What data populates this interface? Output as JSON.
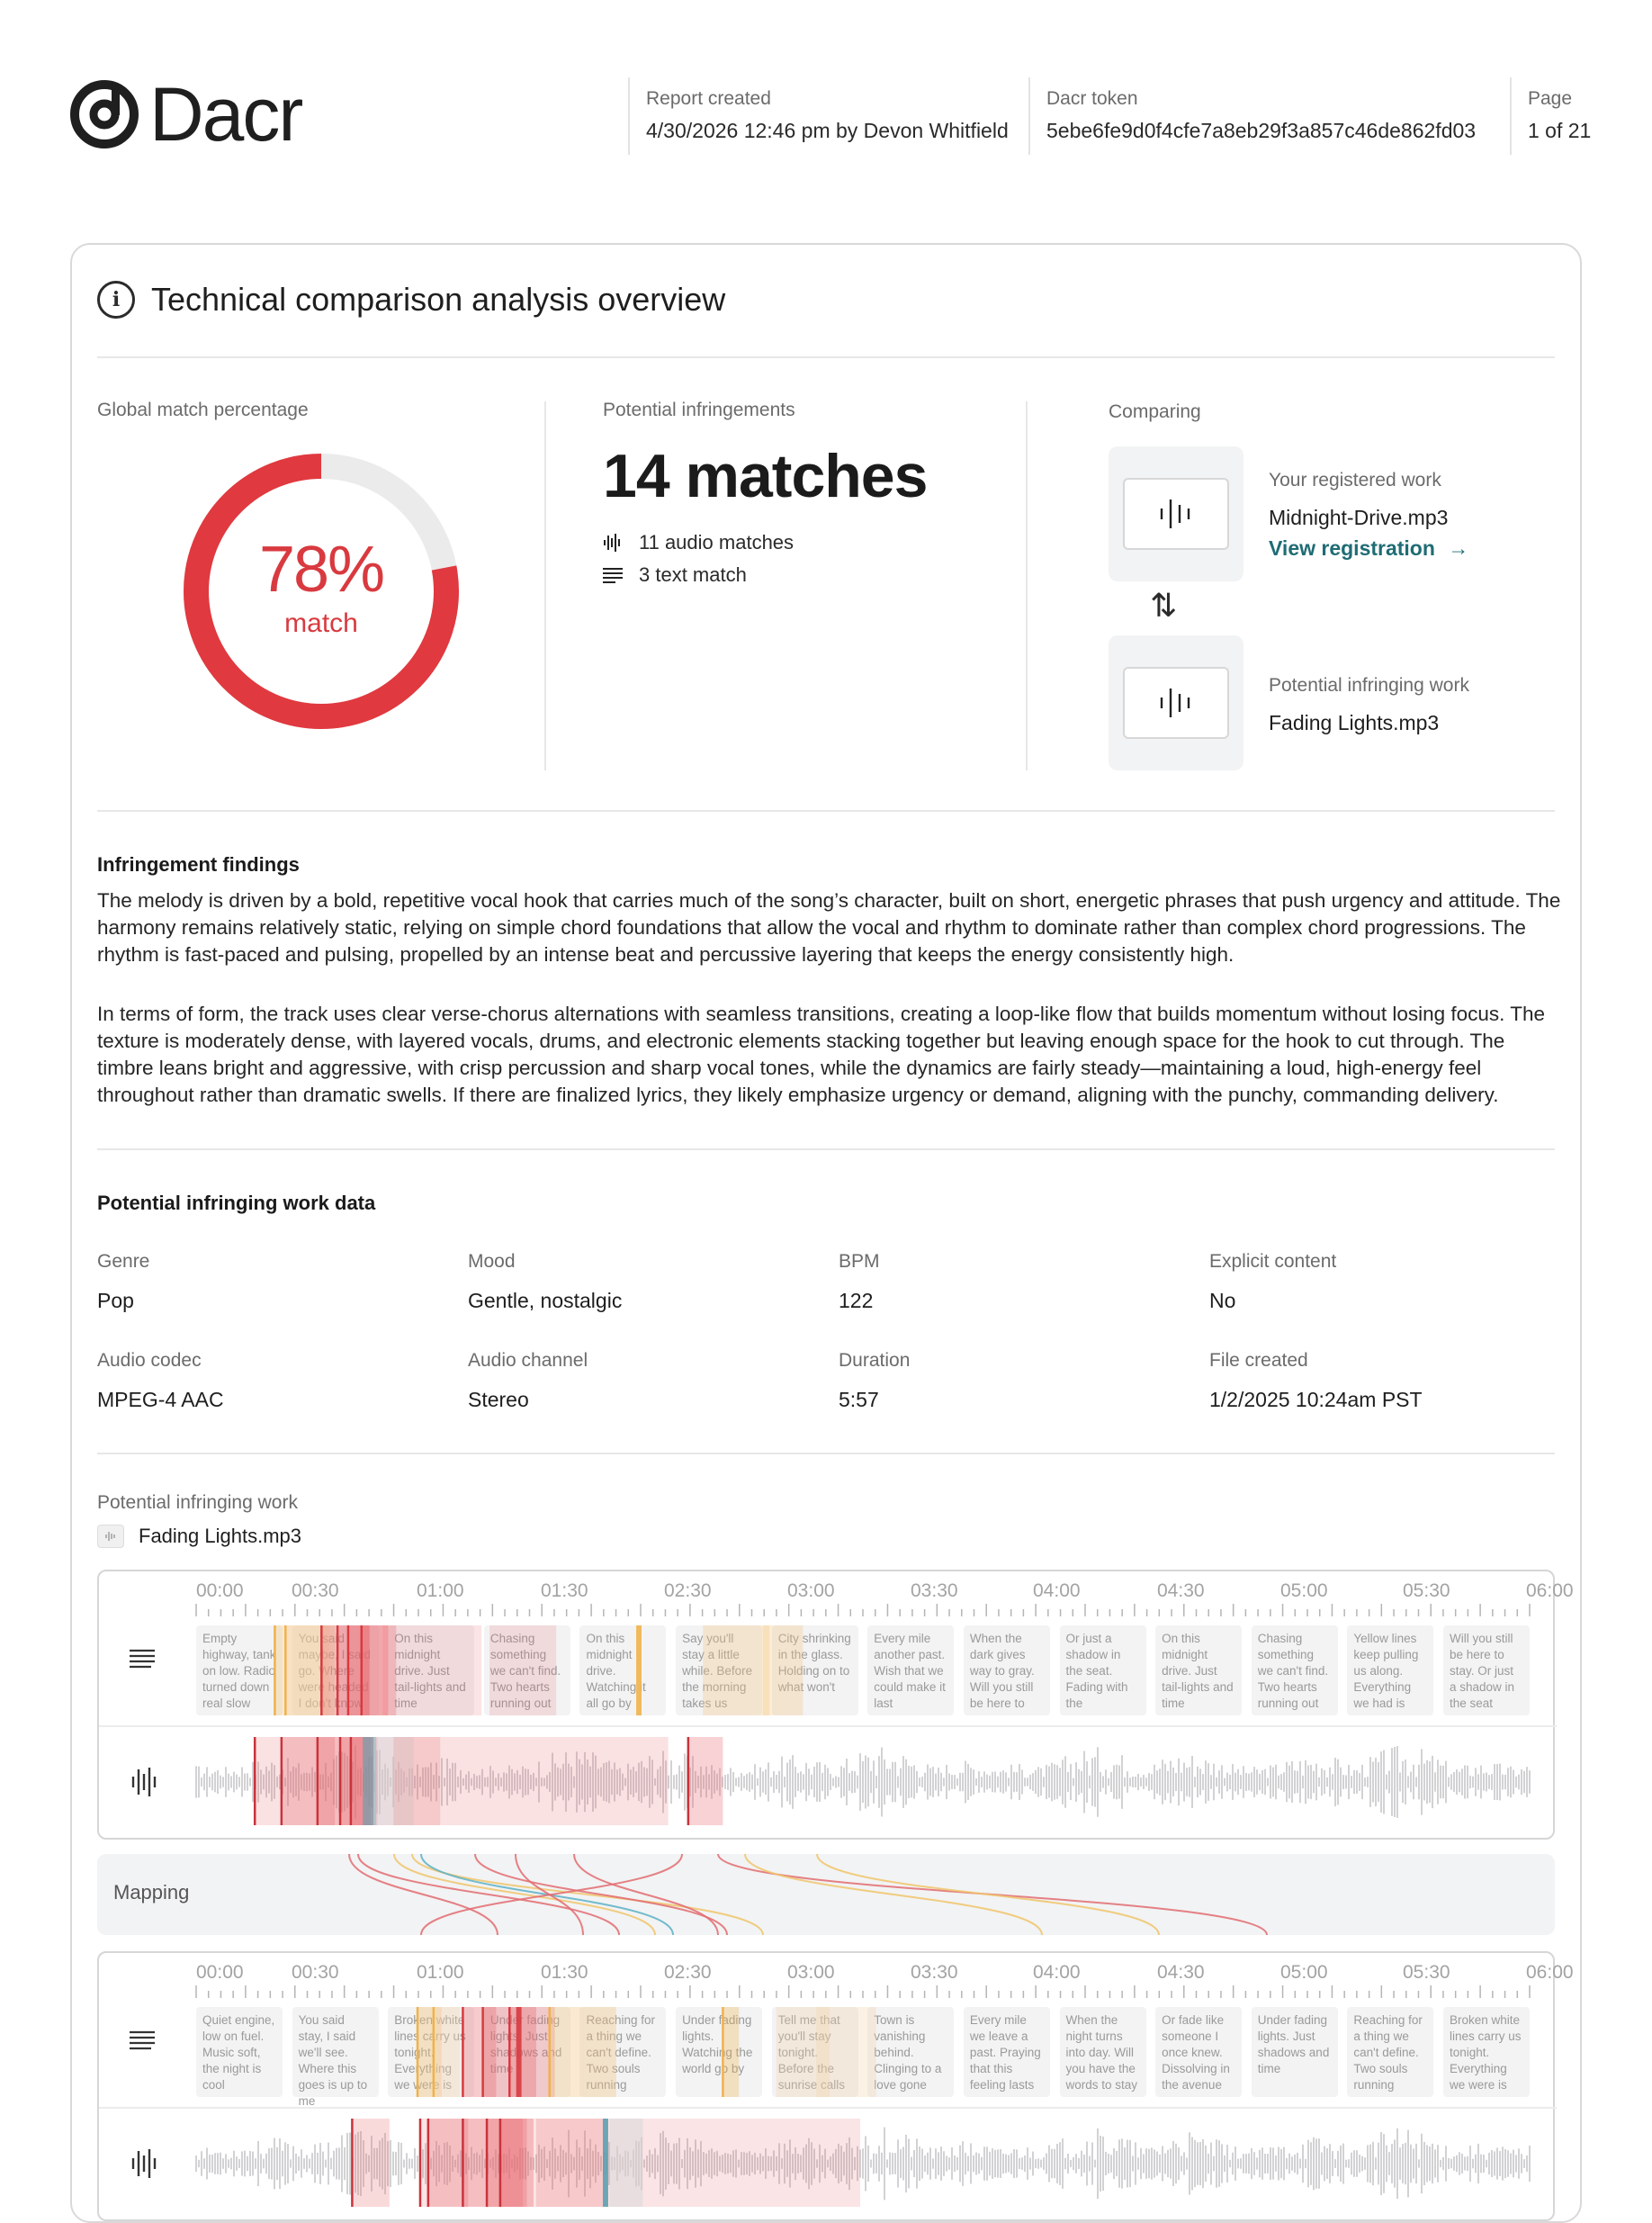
{
  "header": {
    "logo_text": "Dacr",
    "report_created_label": "Report created",
    "report_created_value": "4/30/2026 12:46 pm by Devon Whitfield",
    "token_label": "Dacr token",
    "token_value": "5ebe6fe9d0f4cfe7a8eb29f3a857c46de862fd03",
    "page_label": "Page",
    "page_value": "1 of 21"
  },
  "overview": {
    "title": "Technical comparison analysis overview",
    "global_match_label": "Global match percentage",
    "match_percent": 78,
    "match_percent_text": "78%",
    "match_word": "match",
    "infringements_label": "Potential infringements",
    "matches_count": "14 matches",
    "audio_matches": "11 audio matches",
    "text_matches": "3 text match",
    "comparing_label": "Comparing",
    "registered_label": "Your registered work",
    "registered_file": "Midnight-Drive.mp3",
    "view_registration": "View registration",
    "infringing_label": "Potential infringing work",
    "infringing_file": "Fading Lights.mp3",
    "accent_color": "#d83a3f",
    "link_color": "#1f6c74"
  },
  "findings": {
    "title": "Infringement findings",
    "paragraph_1": "The melody is driven by a bold, repetitive vocal hook that carries much of the song’s character, built on short, energetic phrases that push urgency and attitude. The harmony remains relatively static, relying on simple chord foundations that allow the vocal and rhythm to dominate rather than complex chord progressions. The rhythm is fast-paced and pulsing, propelled by an intense beat and percussive layering that keeps the energy consistently high.",
    "paragraph_2": "In terms of form, the track uses clear verse-chorus alternations with seamless transitions, creating a loop-like flow that builds momentum without losing focus. The texture is moderately dense, with layered vocals, drums, and electronic elements stacking together but leaving enough space for the hook to cut through. The timbre leans bright and aggressive, with crisp percussion and sharp vocal tones, while the dynamics are fairly steady—maintaining a loud, high-energy feel throughout rather than dramatic swells. If there are finalized lyrics, they likely emphasize urgency or demand, aligning with the punchy, commanding delivery."
  },
  "work_data": {
    "title": "Potential infringing work data",
    "fields": [
      {
        "label": "Genre",
        "value": "Pop"
      },
      {
        "label": "Mood",
        "value": "Gentle, nostalgic"
      },
      {
        "label": "BPM",
        "value": "122"
      },
      {
        "label": "Explicit content",
        "value": "No"
      },
      {
        "label": "Audio codec",
        "value": "MPEG-4 AAC"
      },
      {
        "label": "Audio channel",
        "value": "Stereo"
      },
      {
        "label": "Duration",
        "value": "5:57"
      },
      {
        "label": "File created",
        "value": "1/2/2025 10:24am PST"
      }
    ]
  },
  "timeline": {
    "work_label": "Potential infringing work",
    "work_file": "Fading Lights.mp3",
    "mapping_label": "Mapping",
    "time_labels": [
      "00:00",
      "00:30",
      "01:00",
      "01:30",
      "02:30",
      "03:00",
      "03:30",
      "04:00",
      "04:30",
      "05:00",
      "05:30",
      "06:00"
    ],
    "top_lyrics": [
      "Empty highway, tank on low. Radio turned down real slow",
      "You said maybe, I said go. Where were headed I don't know",
      "On this midnight drive. Just tail-lights and time",
      "Chasing something we can't find. Two hearts running out",
      "On this midnight drive. Watching it all go by",
      "Say you'll stay a little while. Before the morning takes us",
      "City shrinking in the glass. Holding on to what won't",
      "Every mile another past. Wish that we could make it last",
      "When the dark gives way to gray. Will you still be here to",
      "Or just a shadow in the seat. Fading with the",
      "On this midnight drive. Just tail-lights and time",
      "Chasing something we can't find. Two hearts running out",
      "Yellow lines keep pulling us along. Everything we had is",
      "Will you still be here to stay. Or just a shadow in the seat"
    ],
    "bottom_lyrics": [
      "Quiet engine, low on fuel. Music soft, the night is cool",
      "You said stay, I said we'll see. Where this goes is up to me",
      "Broken white lines carry us tonight. Everything we were is",
      "Under fading lights. Just shadows and time",
      "Reaching for a thing we can't define. Two souls running",
      "Under fading lights. Watching the world go by",
      "Tell me that you'll stay tonight. Before the sunrise calls",
      "Town is vanishing behind. Clinging to a love gone",
      "Every mile we leave a past. Praying that this feeling lasts",
      "When the night turns into day. Will you have the words to stay",
      "Or fade like someone I once knew. Dissolving in the avenue",
      "Under fading lights. Just shadows and time",
      "Reaching for a thing we can't define. Two souls running",
      "Broken white lines carry us tonight. Everything we were is"
    ]
  }
}
